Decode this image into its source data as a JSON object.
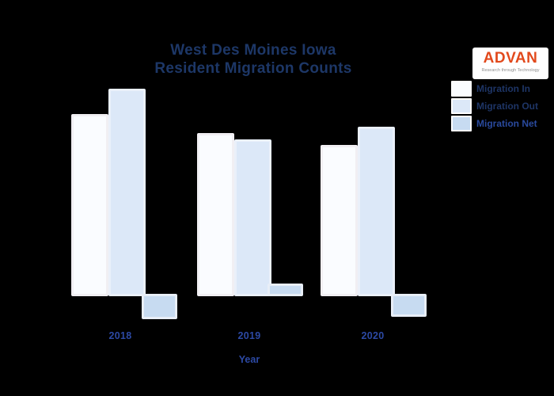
{
  "canvas": {
    "background": "#000000"
  },
  "title": {
    "line1": "West Des Moines Iowa",
    "line2": "Resident Migration Counts",
    "color": "#1d3767"
  },
  "logo": {
    "name": "ADVAN",
    "tagline": "Research through Technology",
    "color": "#e2491c",
    "tagline_color": "#8f8f8f",
    "background": "#ffffff"
  },
  "legend": {
    "position": "top-right",
    "items": [
      {
        "label": "Migration In",
        "swatch_color": "#fafcff",
        "label_color": "#1e3566"
      },
      {
        "label": "Migration Out",
        "swatch_color": "#dce8f8",
        "label_color": "#1e3566"
      },
      {
        "label": "Migration Net",
        "swatch_color": "#c7dbf1",
        "label_color": "#2a4a9e"
      }
    ]
  },
  "x_axis": {
    "title": "Year",
    "tick_labels": [
      "2018",
      "2019",
      "2020"
    ],
    "color": "#2c49a4"
  },
  "chart_data": {
    "type": "bar",
    "title": "West Des Moines Iowa Resident Migration Counts",
    "categories": [
      "2018",
      "2019",
      "2020"
    ],
    "series": [
      {
        "name": "Migration In",
        "values": [
          2300,
          2060,
          1910
        ],
        "color": "#fafcff",
        "border_color": "#f1eff3"
      },
      {
        "name": "Migration Out",
        "values": [
          2620,
          1980,
          2140
        ],
        "color": "#dce8f8",
        "border_color": "#eaf0fa"
      },
      {
        "name": "Migration Net",
        "values": [
          -290,
          130,
          -260
        ],
        "color": "#c7dbf1",
        "border_color": "#e8eef7"
      }
    ],
    "xlabel": "Year",
    "ylabel": "",
    "ylim": [
      -400,
      2800
    ],
    "y_axis_ticks_visible": false,
    "gridlines": false,
    "legend_position": "top-right",
    "values_estimated_from_bar_heights": true
  }
}
